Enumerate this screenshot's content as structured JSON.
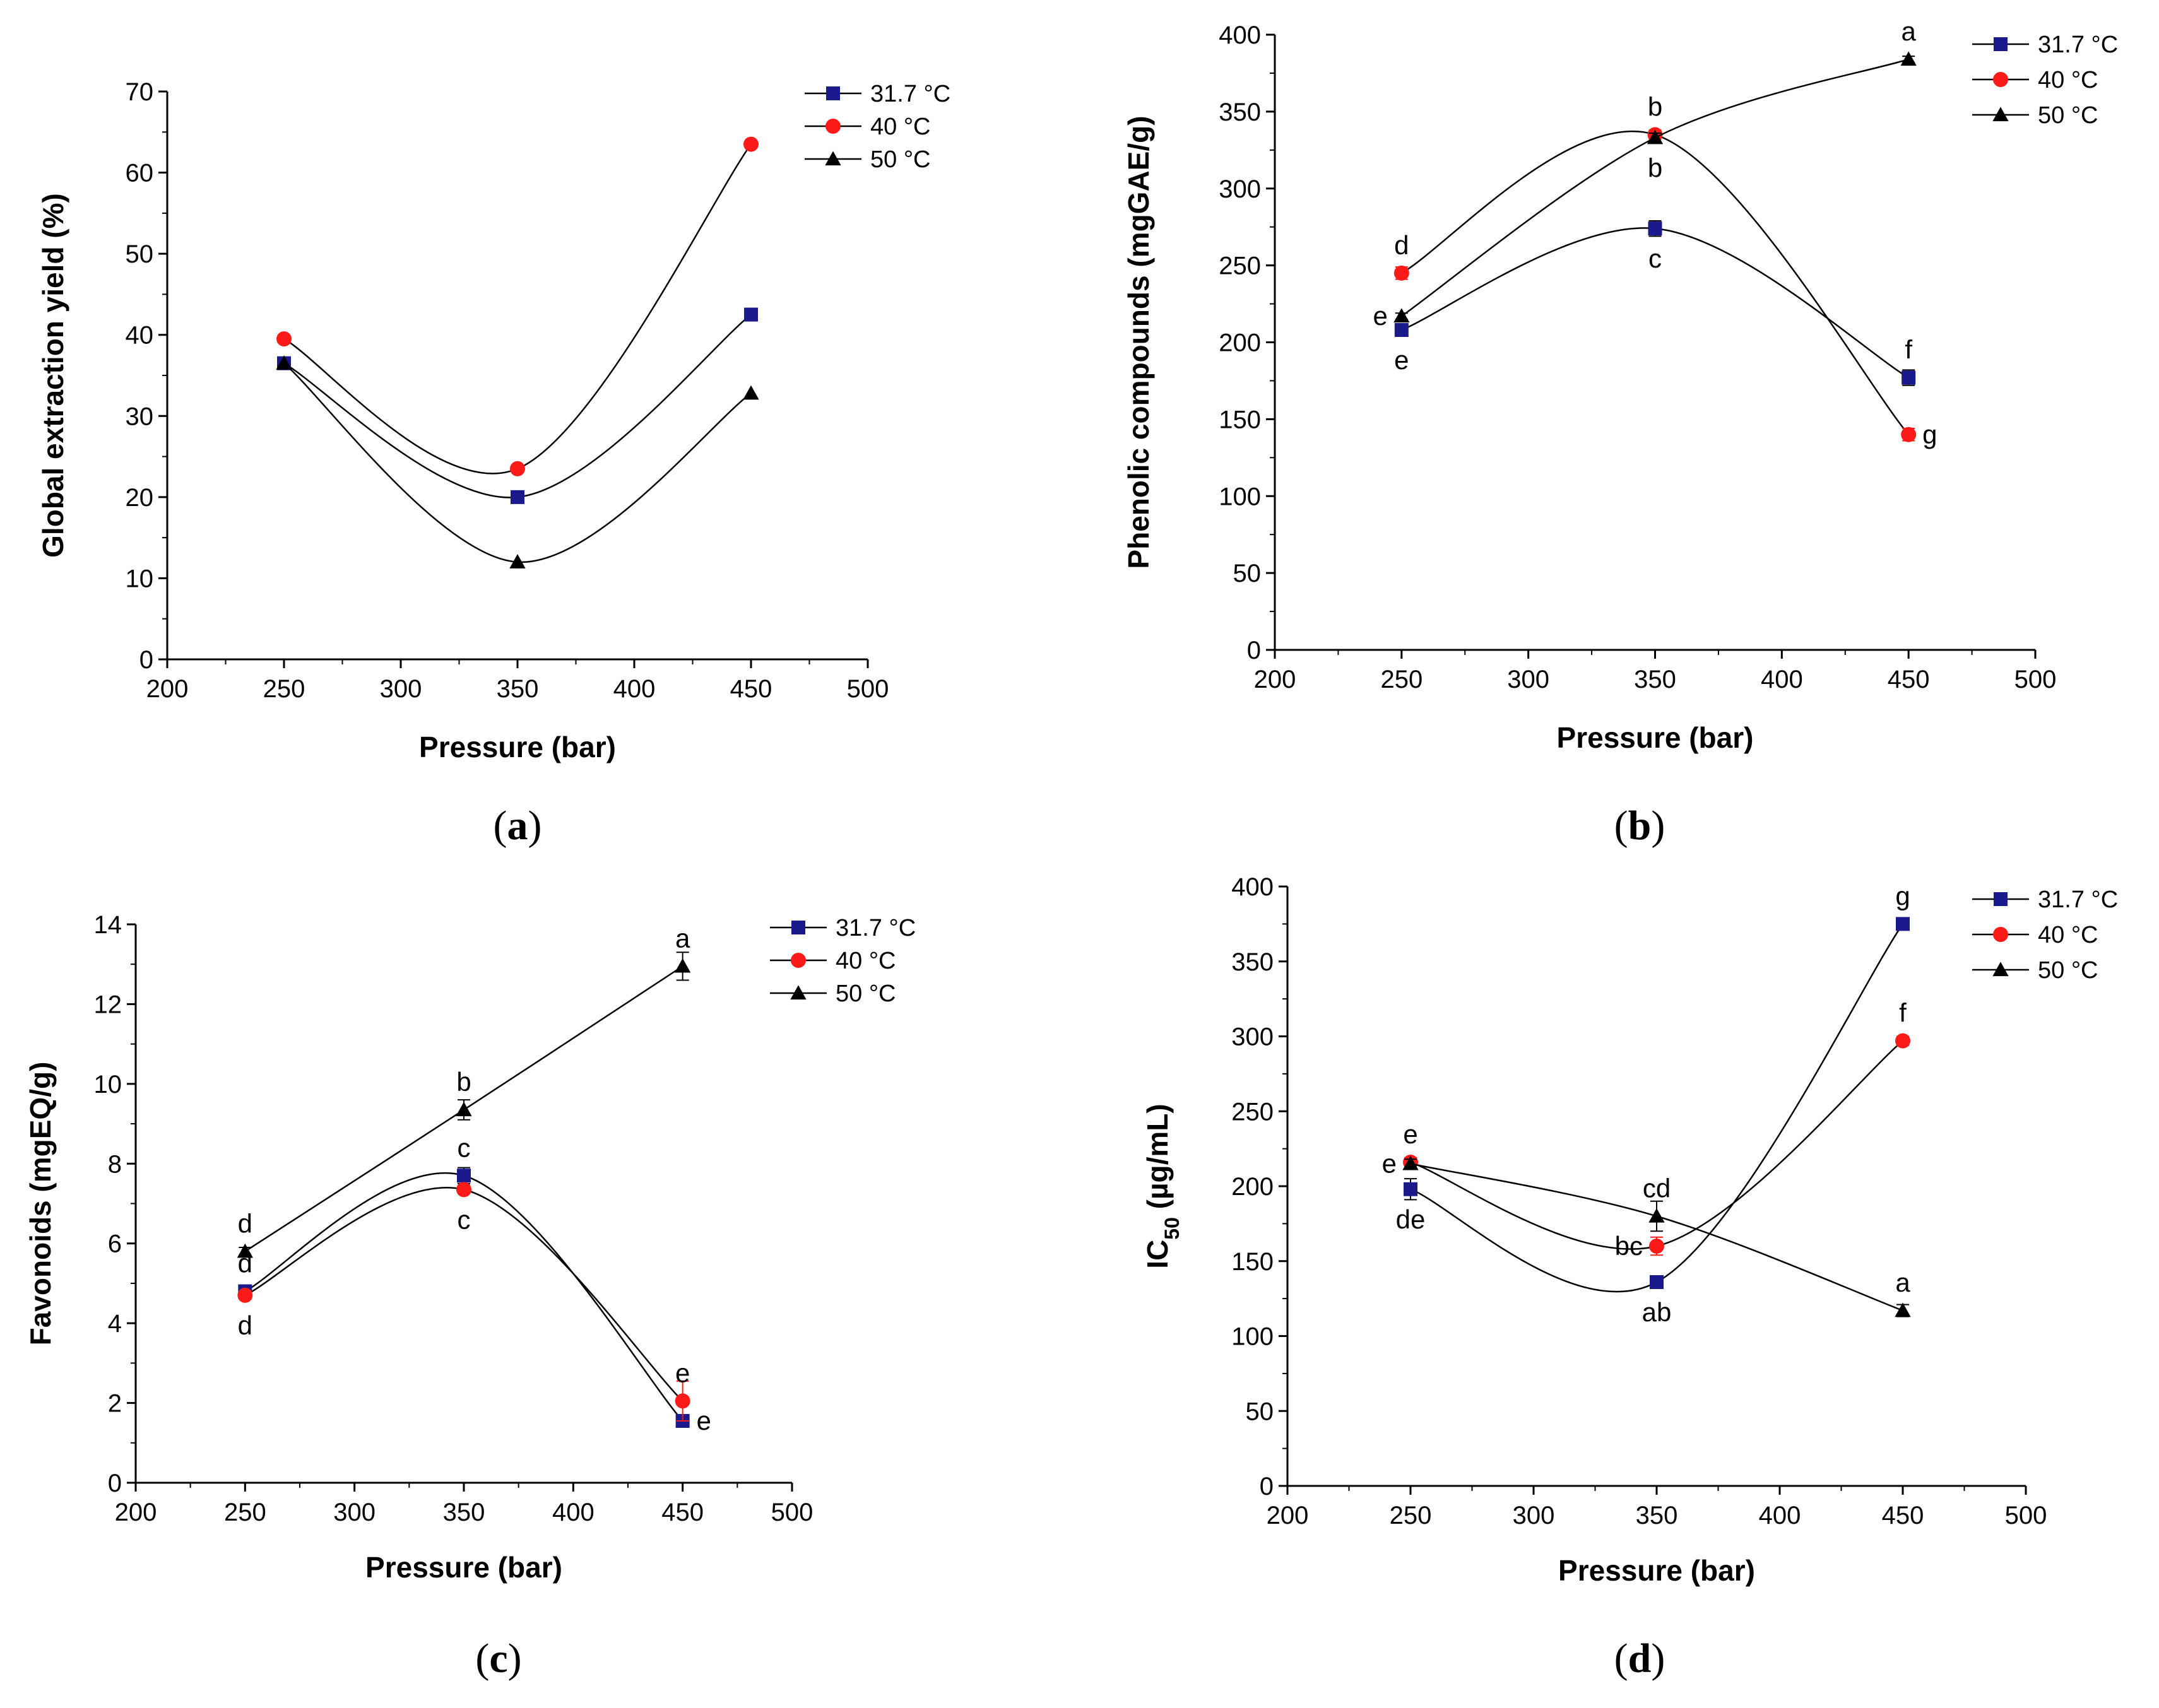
{
  "chart_data": [
    {
      "type": "line",
      "id": "a",
      "caption_letter": "a",
      "xlabel": "Pressure (bar)",
      "ylabel": "Global extraction yield (%)",
      "xlim": [
        200,
        500
      ],
      "ylim": [
        0,
        70
      ],
      "xticks": [
        200,
        250,
        300,
        350,
        400,
        450,
        500
      ],
      "yticks": [
        0,
        10,
        20,
        30,
        40,
        50,
        60,
        70
      ],
      "x": [
        250,
        350,
        450
      ],
      "legend_position": "top-right",
      "series": [
        {
          "name": "31.7 °C",
          "marker": "square",
          "color": "#1a1a8c",
          "values": [
            36.5,
            20.0,
            42.5
          ],
          "err": [
            0,
            0,
            0
          ]
        },
        {
          "name": "40 °C",
          "marker": "circle",
          "color": "#ff1a1a",
          "values": [
            39.5,
            23.5,
            63.5
          ],
          "err": [
            0,
            0,
            0
          ]
        },
        {
          "name": "50 °C",
          "marker": "triangle",
          "color": "#000000",
          "values": [
            36.5,
            12.0,
            32.8
          ],
          "err": [
            0,
            0,
            0
          ]
        }
      ],
      "annotations": []
    },
    {
      "type": "line",
      "id": "b",
      "caption_letter": "b",
      "xlabel": "Pressure (bar)",
      "ylabel": "Phenolic compounds (mgGAE/g)",
      "xlim": [
        200,
        500
      ],
      "ylim": [
        0,
        400
      ],
      "xticks": [
        200,
        250,
        300,
        350,
        400,
        450,
        500
      ],
      "yticks": [
        0,
        50,
        100,
        150,
        200,
        250,
        300,
        350,
        400
      ],
      "x": [
        250,
        350,
        450
      ],
      "legend_position": "top-right",
      "series": [
        {
          "name": "31.7 °C",
          "marker": "square",
          "color": "#1a1a8c",
          "values": [
            208,
            274,
            177
          ],
          "err": [
            4,
            5,
            5
          ]
        },
        {
          "name": "40 °C",
          "marker": "circle",
          "color": "#ff1a1a",
          "values": [
            245,
            335,
            140
          ],
          "err": [
            4,
            3,
            4
          ]
        },
        {
          "name": "50 °C",
          "marker": "triangle",
          "color": "#000000",
          "values": [
            217,
            333,
            384
          ],
          "err": [
            2,
            3,
            2
          ]
        }
      ],
      "annotations": [
        {
          "text": "e",
          "x": 250,
          "y": 217,
          "pos": "left"
        },
        {
          "text": "d",
          "x": 250,
          "y": 245,
          "pos": "above"
        },
        {
          "text": "e",
          "x": 250,
          "y": 208,
          "pos": "below"
        },
        {
          "text": "b",
          "x": 350,
          "y": 335,
          "pos": "above"
        },
        {
          "text": "b",
          "x": 350,
          "y": 333,
          "pos": "below"
        },
        {
          "text": "c",
          "x": 350,
          "y": 274,
          "pos": "below"
        },
        {
          "text": "a",
          "x": 450,
          "y": 384,
          "pos": "above"
        },
        {
          "text": "f",
          "x": 450,
          "y": 177,
          "pos": "above"
        },
        {
          "text": "g",
          "x": 450,
          "y": 140,
          "pos": "right"
        }
      ]
    },
    {
      "type": "line",
      "id": "c",
      "caption_letter": "c",
      "xlabel": "Pressure (bar)",
      "ylabel": "Favonoids (mgEQ/g)",
      "xlim": [
        200,
        500
      ],
      "ylim": [
        0,
        14
      ],
      "xticks": [
        200,
        250,
        300,
        350,
        400,
        450,
        500
      ],
      "yticks": [
        0,
        2,
        4,
        6,
        8,
        10,
        12,
        14
      ],
      "x": [
        250,
        350,
        450
      ],
      "legend_position": "top-right",
      "series": [
        {
          "name": "31.7 °C",
          "marker": "square",
          "color": "#1a1a8c",
          "values": [
            4.8,
            7.7,
            1.55
          ],
          "err": [
            0.1,
            0.2,
            0.05
          ]
        },
        {
          "name": "40 °C",
          "marker": "circle",
          "color": "#ff1a1a",
          "values": [
            4.7,
            7.35,
            2.05
          ],
          "err": [
            0.1,
            0.1,
            0.5
          ]
        },
        {
          "name": "50 °C",
          "marker": "triangle",
          "color": "#000000",
          "values": [
            5.8,
            9.35,
            12.95
          ],
          "err": [
            0.1,
            0.25,
            0.35
          ]
        }
      ],
      "annotations": [
        {
          "text": "d",
          "x": 250,
          "y": 5.8,
          "pos": "above"
        },
        {
          "text": "d",
          "x": 250,
          "y": 4.8,
          "pos": "above"
        },
        {
          "text": "d",
          "x": 250,
          "y": 4.7,
          "pos": "below"
        },
        {
          "text": "b",
          "x": 350,
          "y": 9.35,
          "pos": "above"
        },
        {
          "text": "c",
          "x": 350,
          "y": 7.7,
          "pos": "above"
        },
        {
          "text": "c",
          "x": 350,
          "y": 7.35,
          "pos": "below"
        },
        {
          "text": "a",
          "x": 450,
          "y": 12.95,
          "pos": "above"
        },
        {
          "text": "e",
          "x": 450,
          "y": 2.05,
          "pos": "above"
        },
        {
          "text": "e",
          "x": 450,
          "y": 1.55,
          "pos": "right"
        }
      ]
    },
    {
      "type": "line",
      "id": "d",
      "caption_letter": "d",
      "xlabel": "Pressure (bar)",
      "ylabel": "IC50 (µg/mL)",
      "ylabel_parts": [
        "IC",
        "50",
        " (µg/mL)"
      ],
      "xlim": [
        200,
        500
      ],
      "ylim": [
        0,
        400
      ],
      "xticks": [
        200,
        250,
        300,
        350,
        400,
        450,
        500
      ],
      "yticks": [
        0,
        50,
        100,
        150,
        200,
        250,
        300,
        350,
        400
      ],
      "x": [
        250,
        350,
        450
      ],
      "legend_position": "top-right",
      "series": [
        {
          "name": "31.7 °C",
          "marker": "square",
          "color": "#1a1a8c",
          "values": [
            198,
            136,
            375
          ],
          "err": [
            7,
            3,
            3
          ]
        },
        {
          "name": "40 °C",
          "marker": "circle",
          "color": "#ff1a1a",
          "values": [
            216,
            160,
            297
          ],
          "err": [
            3,
            6,
            3
          ]
        },
        {
          "name": "50 °C",
          "marker": "triangle",
          "color": "#000000",
          "values": [
            215,
            180,
            117
          ],
          "err": [
            3,
            10,
            4
          ]
        }
      ],
      "annotations": [
        {
          "text": "e",
          "x": 250,
          "y": 216,
          "pos": "above"
        },
        {
          "text": "e",
          "x": 250,
          "y": 215,
          "pos": "left"
        },
        {
          "text": "de",
          "x": 250,
          "y": 198,
          "pos": "below"
        },
        {
          "text": "cd",
          "x": 350,
          "y": 180,
          "pos": "above"
        },
        {
          "text": "bc",
          "x": 350,
          "y": 160,
          "pos": "left"
        },
        {
          "text": "ab",
          "x": 350,
          "y": 136,
          "pos": "below"
        },
        {
          "text": "g",
          "x": 450,
          "y": 375,
          "pos": "above"
        },
        {
          "text": "f",
          "x": 450,
          "y": 297,
          "pos": "above"
        },
        {
          "text": "a",
          "x": 450,
          "y": 117,
          "pos": "above"
        }
      ]
    }
  ]
}
